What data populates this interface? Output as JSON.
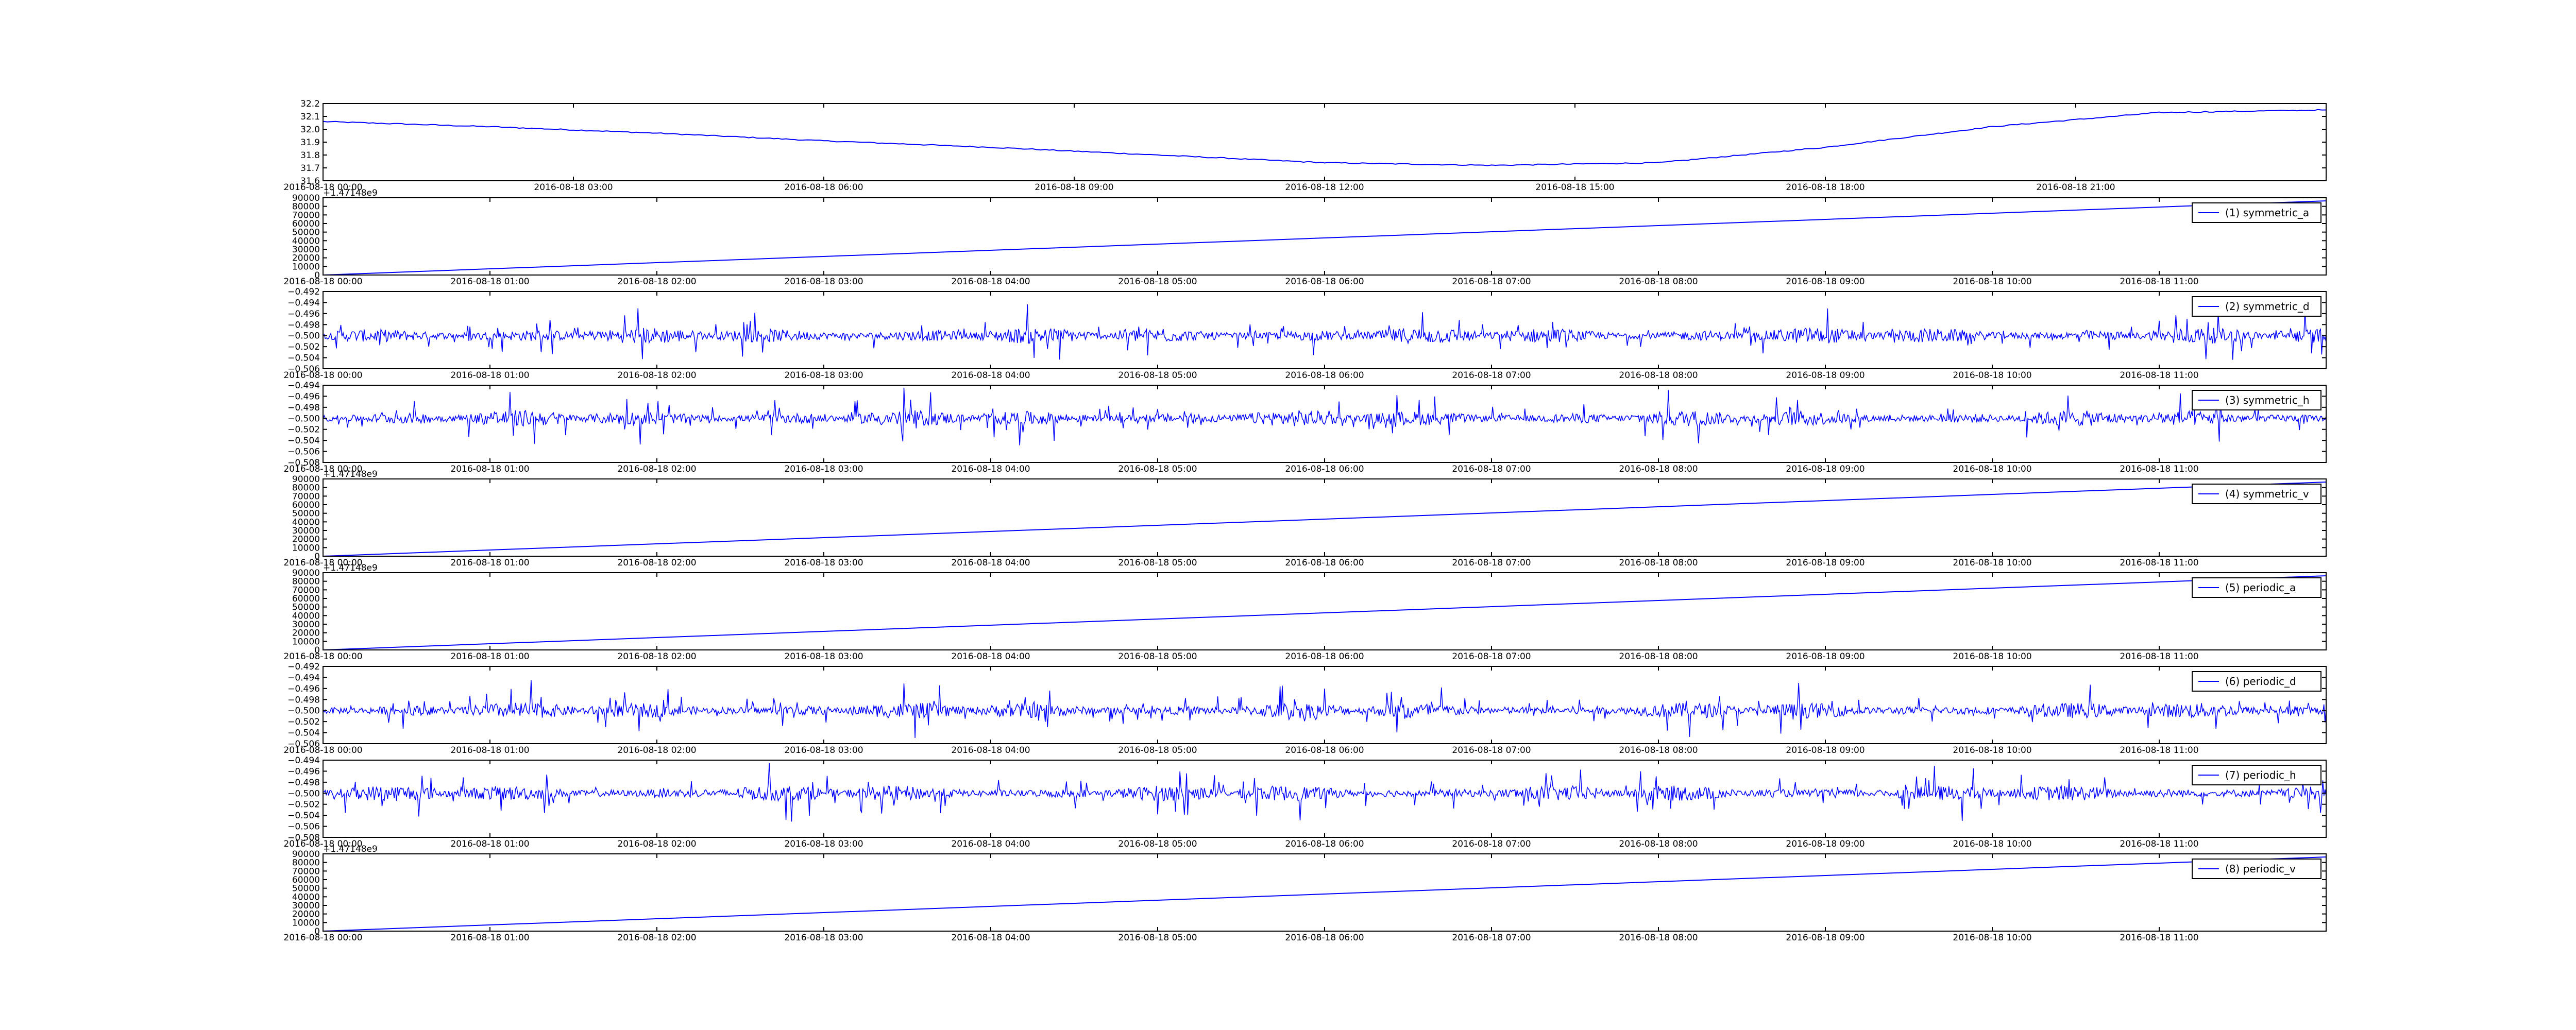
{
  "chart_data": [
    {
      "type": "line",
      "panel": 0,
      "series": [
        {
          "name": "",
          "color": "#0000ff",
          "x": [
            "2016-08-18 00:00",
            "2016-08-18 02:00",
            "2016-08-18 04:00",
            "2016-08-18 06:00",
            "2016-08-18 08:00",
            "2016-08-18 10:00",
            "2016-08-18 12:00",
            "2016-08-18 14:00",
            "2016-08-18 16:00",
            "2016-08-18 18:00",
            "2016-08-18 20:00",
            "2016-08-18 22:00",
            "2016-08-19 00:00"
          ],
          "values": [
            32.06,
            32.02,
            31.97,
            31.91,
            31.86,
            31.8,
            31.74,
            31.72,
            31.74,
            31.86,
            32.02,
            32.13,
            32.15
          ]
        }
      ],
      "xlim": [
        "2016-08-18 00:00",
        "2016-08-19 00:00"
      ],
      "ylim": [
        31.6,
        32.2
      ],
      "yticks": [
        "31.6",
        "31.7",
        "31.8",
        "31.9",
        "32.0",
        "32.1",
        "32.2"
      ],
      "xticks": [
        "2016-08-18 00:00",
        "2016-08-18 03:00",
        "2016-08-18 06:00",
        "2016-08-18 09:00",
        "2016-08-18 12:00",
        "2016-08-18 15:00",
        "2016-08-18 18:00",
        "2016-08-18 21:00"
      ],
      "offset_label": "",
      "legend": ""
    },
    {
      "type": "line",
      "panel": 1,
      "series": [
        {
          "name": "(1) symmetric_a",
          "color": "#0000ff",
          "x": [
            "2016-08-18 00:00",
            "2016-08-18 12:00"
          ],
          "values": [
            0,
            86400
          ]
        }
      ],
      "xlim": [
        "2016-08-18 00:00",
        "2016-08-18 12:00"
      ],
      "ylim": [
        0,
        90000
      ],
      "yticks": [
        "0",
        "10000",
        "20000",
        "30000",
        "40000",
        "50000",
        "60000",
        "70000",
        "80000",
        "90000"
      ],
      "xticks": [
        "2016-08-18 00:00",
        "2016-08-18 01:00",
        "2016-08-18 02:00",
        "2016-08-18 03:00",
        "2016-08-18 04:00",
        "2016-08-18 05:00",
        "2016-08-18 06:00",
        "2016-08-18 07:00",
        "2016-08-18 08:00",
        "2016-08-18 09:00",
        "2016-08-18 10:00",
        "2016-08-18 11:00"
      ],
      "offset_label": "+1.47148e9",
      "legend": "(1) symmetric_a",
      "legend_position": "upper-right"
    },
    {
      "type": "line",
      "panel": 2,
      "series": [
        {
          "name": "(2) symmetric_d",
          "color": "#0000ff",
          "baseline": -0.5,
          "amplitude": 0.006
        }
      ],
      "xlim": [
        "2016-08-18 00:00",
        "2016-08-18 12:00"
      ],
      "ylim": [
        -0.506,
        -0.492
      ],
      "yticks": [
        "−0.506",
        "−0.504",
        "−0.502",
        "−0.500",
        "−0.498",
        "−0.496",
        "−0.494",
        "−0.492"
      ],
      "xticks": [
        "2016-08-18 00:00",
        "2016-08-18 01:00",
        "2016-08-18 02:00",
        "2016-08-18 03:00",
        "2016-08-18 04:00",
        "2016-08-18 05:00",
        "2016-08-18 06:00",
        "2016-08-18 07:00",
        "2016-08-18 08:00",
        "2016-08-18 09:00",
        "2016-08-18 10:00",
        "2016-08-18 11:00"
      ],
      "offset_label": "",
      "legend": "(2) symmetric_d",
      "legend_position": "upper-right"
    },
    {
      "type": "line",
      "panel": 3,
      "series": [
        {
          "name": "(3) symmetric_h",
          "color": "#0000ff",
          "baseline": -0.5,
          "amplitude": 0.006
        }
      ],
      "xlim": [
        "2016-08-18 00:00",
        "2016-08-18 12:00"
      ],
      "ylim": [
        -0.508,
        -0.494
      ],
      "yticks": [
        "−0.508",
        "−0.506",
        "−0.504",
        "−0.502",
        "−0.500",
        "−0.498",
        "−0.496",
        "−0.494"
      ],
      "xticks": [
        "2016-08-18 00:00",
        "2016-08-18 01:00",
        "2016-08-18 02:00",
        "2016-08-18 03:00",
        "2016-08-18 04:00",
        "2016-08-18 05:00",
        "2016-08-18 06:00",
        "2016-08-18 07:00",
        "2016-08-18 08:00",
        "2016-08-18 09:00",
        "2016-08-18 10:00",
        "2016-08-18 11:00"
      ],
      "offset_label": "",
      "legend": "(3) symmetric_h",
      "legend_position": "upper-right"
    },
    {
      "type": "line",
      "panel": 4,
      "series": [
        {
          "name": "(4) symmetric_v",
          "color": "#0000ff",
          "x": [
            "2016-08-18 00:00",
            "2016-08-18 12:00"
          ],
          "values": [
            0,
            86400
          ]
        }
      ],
      "xlim": [
        "2016-08-18 00:00",
        "2016-08-18 12:00"
      ],
      "ylim": [
        0,
        90000
      ],
      "yticks": [
        "0",
        "10000",
        "20000",
        "30000",
        "40000",
        "50000",
        "60000",
        "70000",
        "80000",
        "90000"
      ],
      "xticks": [
        "2016-08-18 00:00",
        "2016-08-18 01:00",
        "2016-08-18 02:00",
        "2016-08-18 03:00",
        "2016-08-18 04:00",
        "2016-08-18 05:00",
        "2016-08-18 06:00",
        "2016-08-18 07:00",
        "2016-08-18 08:00",
        "2016-08-18 09:00",
        "2016-08-18 10:00",
        "2016-08-18 11:00"
      ],
      "offset_label": "+1.47148e9",
      "legend": "(4) symmetric_v",
      "legend_position": "upper-right"
    },
    {
      "type": "line",
      "panel": 5,
      "series": [
        {
          "name": "(5) periodic_a",
          "color": "#0000ff",
          "x": [
            "2016-08-18 00:00",
            "2016-08-18 12:00"
          ],
          "values": [
            0,
            86400
          ]
        }
      ],
      "xlim": [
        "2016-08-18 00:00",
        "2016-08-18 12:00"
      ],
      "ylim": [
        0,
        90000
      ],
      "yticks": [
        "0",
        "10000",
        "20000",
        "30000",
        "40000",
        "50000",
        "60000",
        "70000",
        "80000",
        "90000"
      ],
      "xticks": [
        "2016-08-18 00:00",
        "2016-08-18 01:00",
        "2016-08-18 02:00",
        "2016-08-18 03:00",
        "2016-08-18 04:00",
        "2016-08-18 05:00",
        "2016-08-18 06:00",
        "2016-08-18 07:00",
        "2016-08-18 08:00",
        "2016-08-18 09:00",
        "2016-08-18 10:00",
        "2016-08-18 11:00"
      ],
      "offset_label": "+1.47148e9",
      "legend": "(5) periodic_a",
      "legend_position": "upper-right"
    },
    {
      "type": "line",
      "panel": 6,
      "series": [
        {
          "name": "(6) periodic_d",
          "color": "#0000ff",
          "baseline": -0.5,
          "amplitude": 0.006
        }
      ],
      "xlim": [
        "2016-08-18 00:00",
        "2016-08-18 12:00"
      ],
      "ylim": [
        -0.506,
        -0.492
      ],
      "yticks": [
        "−0.506",
        "−0.504",
        "−0.502",
        "−0.500",
        "−0.498",
        "−0.496",
        "−0.494",
        "−0.492"
      ],
      "xticks": [
        "2016-08-18 00:00",
        "2016-08-18 01:00",
        "2016-08-18 02:00",
        "2016-08-18 03:00",
        "2016-08-18 04:00",
        "2016-08-18 05:00",
        "2016-08-18 06:00",
        "2016-08-18 07:00",
        "2016-08-18 08:00",
        "2016-08-18 09:00",
        "2016-08-18 10:00",
        "2016-08-18 11:00"
      ],
      "offset_label": "",
      "legend": "(6) periodic_d",
      "legend_position": "upper-right"
    },
    {
      "type": "line",
      "panel": 7,
      "series": [
        {
          "name": "(7) periodic_h",
          "color": "#0000ff",
          "baseline": -0.5,
          "amplitude": 0.006
        }
      ],
      "xlim": [
        "2016-08-18 00:00",
        "2016-08-18 12:00"
      ],
      "ylim": [
        -0.508,
        -0.494
      ],
      "yticks": [
        "−0.508",
        "−0.506",
        "−0.504",
        "−0.502",
        "−0.500",
        "−0.498",
        "−0.496",
        "−0.494"
      ],
      "xticks": [
        "2016-08-18 00:00",
        "2016-08-18 01:00",
        "2016-08-18 02:00",
        "2016-08-18 03:00",
        "2016-08-18 04:00",
        "2016-08-18 05:00",
        "2016-08-18 06:00",
        "2016-08-18 07:00",
        "2016-08-18 08:00",
        "2016-08-18 09:00",
        "2016-08-18 10:00",
        "2016-08-18 11:00"
      ],
      "offset_label": "",
      "legend": "(7) periodic_h",
      "legend_position": "upper-right"
    },
    {
      "type": "line",
      "panel": 8,
      "series": [
        {
          "name": "(8) periodic_v",
          "color": "#0000ff",
          "x": [
            "2016-08-18 00:00",
            "2016-08-18 12:00"
          ],
          "values": [
            0,
            86400
          ]
        }
      ],
      "xlim": [
        "2016-08-18 00:00",
        "2016-08-18 12:00"
      ],
      "ylim": [
        0,
        90000
      ],
      "yticks": [
        "0",
        "10000",
        "20000",
        "30000",
        "40000",
        "50000",
        "60000",
        "70000",
        "80000",
        "90000"
      ],
      "xticks": [
        "2016-08-18 00:00",
        "2016-08-18 01:00",
        "2016-08-18 02:00",
        "2016-08-18 03:00",
        "2016-08-18 04:00",
        "2016-08-18 05:00",
        "2016-08-18 06:00",
        "2016-08-18 07:00",
        "2016-08-18 08:00",
        "2016-08-18 09:00",
        "2016-08-18 10:00",
        "2016-08-18 11:00"
      ],
      "offset_label": "+1.47148e9",
      "legend": "(8) periodic_v",
      "legend_position": "upper-right"
    }
  ]
}
